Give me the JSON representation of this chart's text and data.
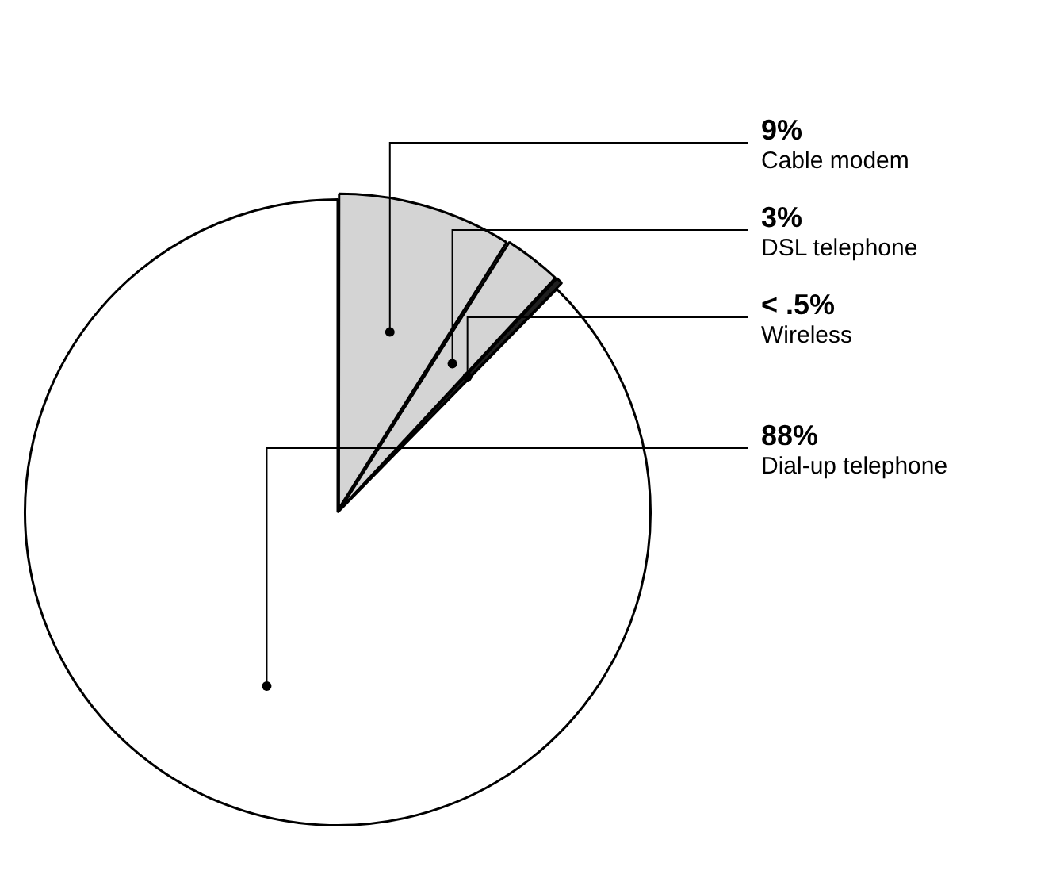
{
  "chart_data": {
    "type": "pie",
    "categories": [
      "Cable modem",
      "DSL telephone",
      "Wireless",
      "Dial-up telephone"
    ],
    "values": [
      9,
      3,
      0.4,
      88
    ],
    "value_labels": [
      "9%",
      "3%",
      "< .5%",
      "88%"
    ],
    "colors": [
      "#d4d4d4",
      "#d4d4d4",
      "#202020",
      "#ffffff"
    ],
    "legend": false
  }
}
